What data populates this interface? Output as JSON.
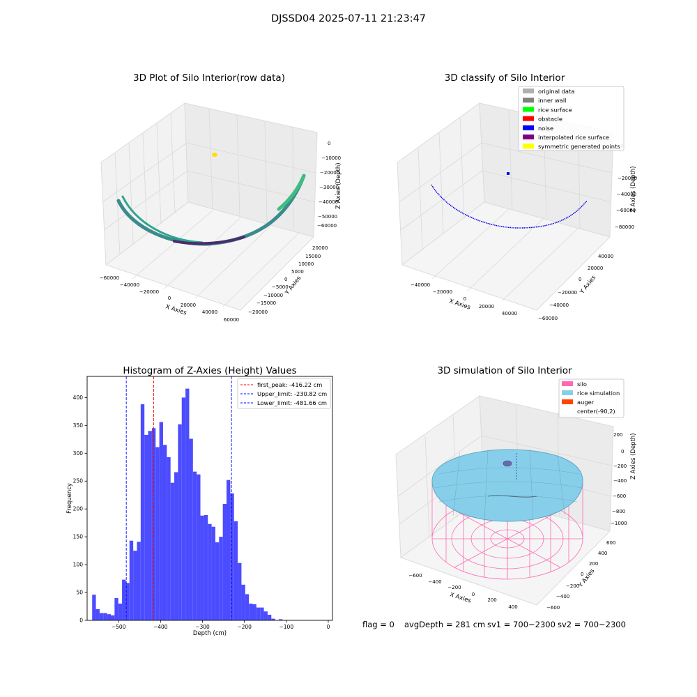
{
  "suptitle": "DJSSD04 2025-07-11 21:23:47",
  "colors": {
    "noise": "#0000ee",
    "hist": "#4c4cff",
    "silo": "#ff69b4",
    "rice": "#87ceeb",
    "auger": "#ff4500",
    "peak_line": "#ff0000",
    "limit_line": "#0000ff"
  },
  "status": {
    "flag": "flag = 0",
    "avg_depth": "avgDepth = 281 cm",
    "sv1": "sv1 = 700~2300",
    "sv2": "sv2 = 700~2300"
  },
  "chart_data": [
    {
      "type": "scatter",
      "title": "3D Plot of Silo Interior(row data)",
      "xlabel": "X Axies",
      "ylabel": "Y Axies",
      "zlabel": "Z Axies (Depth)",
      "x_ticks": [
        "−60000",
        "−40000",
        "−20000",
        "0",
        "20000",
        "40000",
        "60000"
      ],
      "y_ticks": [
        "20000",
        "15000",
        "10000",
        "5000",
        "0",
        "−5000",
        "−10000",
        "−15000",
        "−20000"
      ],
      "z_ticks": [
        "0",
        "−10000",
        "−20000",
        "−30000",
        "−40000",
        "−50000",
        "−60000"
      ],
      "xlim": [
        -60000,
        60000
      ],
      "ylim": [
        -20000,
        20000
      ],
      "zlim": [
        -65000,
        5000
      ]
    },
    {
      "type": "scatter",
      "title": "3D classify of Silo Interior",
      "xlabel": "X Axies",
      "ylabel": "Y Axies",
      "zlabel": "Z Axies (Depth)",
      "x_ticks": [
        "−40000",
        "−20000",
        "0",
        "20000",
        "40000"
      ],
      "y_ticks": [
        "40000",
        "20000",
        "0",
        "−20000",
        "−40000",
        "−60000"
      ],
      "z_ticks": [
        "0",
        "−20000",
        "−40000",
        "−60000",
        "−80000"
      ],
      "legend": [
        {
          "label": "original data",
          "color": "#b0b0b0"
        },
        {
          "label": "inner wall",
          "color": "#808080"
        },
        {
          "label": "rice surface",
          "color": "#00ff00"
        },
        {
          "label": "obstacle",
          "color": "#ff0000"
        },
        {
          "label": "noise",
          "color": "#0000ff"
        },
        {
          "label": "interpolated rice surface",
          "color": "#800080"
        },
        {
          "label": "symmetric generated points",
          "color": "#ffff00"
        }
      ]
    },
    {
      "type": "bar",
      "title": "Histogram of Z-Axies (Height) Values",
      "xlabel": "Depth (cm)",
      "ylabel": "Frequency",
      "xlim": [
        -575,
        10
      ],
      "ylim": [
        0,
        438
      ],
      "x_ticks": [
        -500,
        -400,
        -300,
        -200,
        -100,
        0
      ],
      "x_tick_labels": [
        "−500",
        "−400",
        "−300",
        "−200",
        "−100",
        "0"
      ],
      "y_ticks": [
        0,
        50,
        100,
        150,
        200,
        250,
        300,
        350,
        400
      ],
      "y_tick_labels": [
        "0",
        "50",
        "100",
        "150",
        "200",
        "250",
        "300",
        "350",
        "400"
      ],
      "bin_start": -563,
      "bin_width": 8.9,
      "values": [
        46,
        20,
        13,
        13,
        11,
        9,
        40,
        30,
        73,
        67,
        143,
        125,
        141,
        388,
        333,
        340,
        345,
        311,
        356,
        315,
        293,
        247,
        266,
        352,
        400,
        416,
        326,
        267,
        262,
        188,
        189,
        173,
        168,
        140,
        150,
        209,
        252,
        228,
        178,
        103,
        64,
        47,
        30,
        29,
        23,
        23,
        16,
        10,
        3,
        0,
        2,
        0
      ],
      "vlines": [
        {
          "x": -416.22,
          "label": "first_peak: -416.22 cm",
          "color": "#ff0000"
        },
        {
          "x": -230.82,
          "label": "Upper_limit: -230.82 cm",
          "color": "#0000ff"
        },
        {
          "x": -481.66,
          "label": "Lower_limit: -481.66 cm",
          "color": "#0000ff"
        }
      ]
    },
    {
      "type": "scatter",
      "title": "3D simulation of Silo Interior",
      "xlabel": "X Axies",
      "ylabel": "Y Axies",
      "zlabel": "Z Axies (Depth)",
      "x_ticks": [
        "−600",
        "−400",
        "−200",
        "0",
        "200",
        "400"
      ],
      "y_ticks": [
        "600",
        "400",
        "200",
        "0",
        "−200",
        "−400",
        "−600"
      ],
      "z_ticks": [
        "200",
        "0",
        "−200",
        "−400",
        "−600",
        "−800",
        "−1000"
      ],
      "legend": [
        {
          "label": "silo",
          "color": "#ff69b4"
        },
        {
          "label": "rice simulation",
          "color": "#87ceeb"
        },
        {
          "label": "auger",
          "color": "#ff4500"
        },
        {
          "label": "center(-90,2)",
          "color": ""
        }
      ]
    }
  ]
}
